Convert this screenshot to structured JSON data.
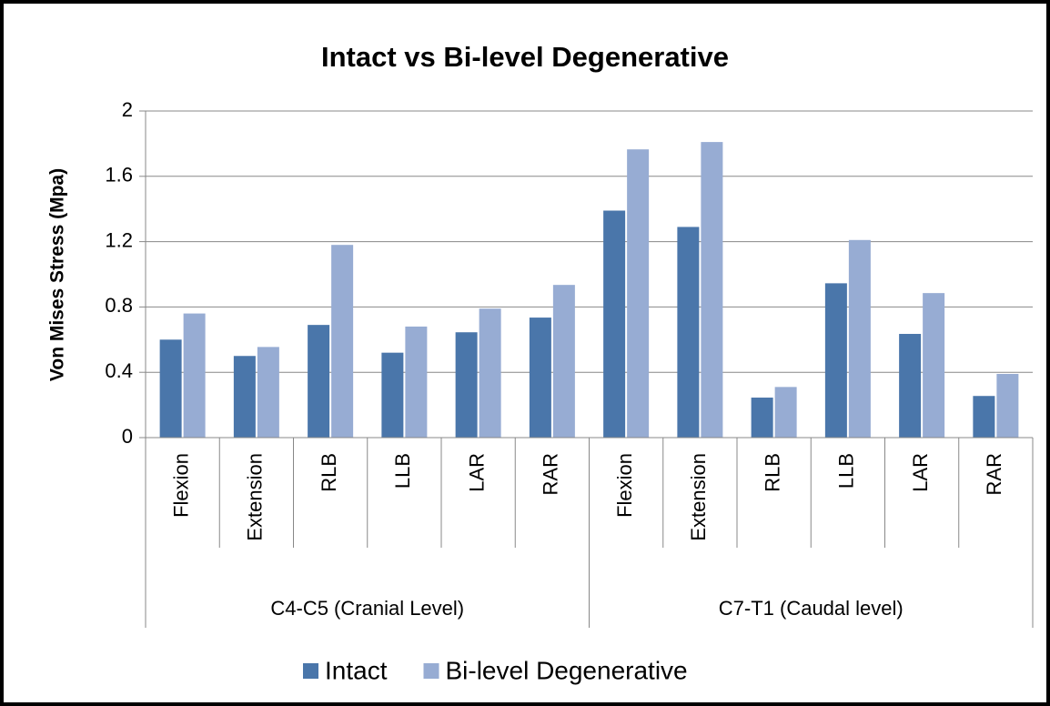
{
  "chart_data": {
    "type": "bar",
    "title": "Intact vs Bi-level Degenerative",
    "y_label": "Von Mises Stress (Mpa)",
    "categories": [
      "Flexion",
      "Extension",
      "RLB",
      "LLB",
      "LAR",
      "RAR",
      "Flexion",
      "Extension",
      "RLB",
      "LLB",
      "LAR",
      "RAR"
    ],
    "groups": [
      {
        "name": "C4-C5 (Cranial Level)",
        "size": 6
      },
      {
        "name": "C7-T1 (Caudal level)",
        "size": 6
      }
    ],
    "series": [
      {
        "name": "Intact",
        "color": "#4a76aa",
        "values": [
          0.6,
          0.5,
          0.69,
          0.52,
          0.645,
          0.735,
          1.39,
          1.29,
          0.245,
          0.945,
          0.635,
          0.255
        ]
      },
      {
        "name": "Bi-level Degenerative",
        "color": "#97acd3",
        "values": [
          0.76,
          0.555,
          1.18,
          0.68,
          0.79,
          0.935,
          1.765,
          1.81,
          0.31,
          1.21,
          0.885,
          0.39
        ]
      }
    ],
    "ylim": [
      0,
      2
    ],
    "yticks": [
      0,
      0.4,
      0.8,
      1.2,
      1.6,
      2
    ],
    "grid": true,
    "legend": "bottom"
  }
}
